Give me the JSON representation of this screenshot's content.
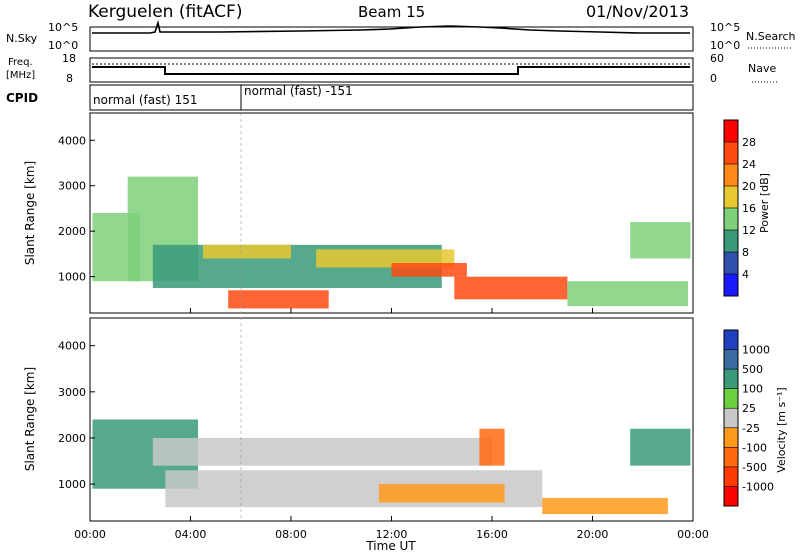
{
  "header": {
    "station": "Kerguelen (fitACF)",
    "beam": "Beam 15",
    "date": "01/Nov/2013"
  },
  "strip_panels": {
    "noise": {
      "left_label": "N.Sky",
      "right_label": "N.Search",
      "left_ticks": [
        "10^5",
        "10^0"
      ],
      "right_ticks": [
        "10^5",
        "10^0"
      ]
    },
    "freq": {
      "left_label_line1": "Freq.",
      "left_label_line2": "[MHz]",
      "right_label": "Nave",
      "left_ticks": [
        "18",
        "8"
      ],
      "right_ticks": [
        "60",
        "0"
      ]
    },
    "cpid": {
      "label": "CPID",
      "segments": [
        {
          "label": "normal (fast) 151",
          "start_hour": 0,
          "end_hour": 6
        },
        {
          "label": "normal (fast) -151",
          "start_hour": 6,
          "end_hour": 24
        }
      ]
    }
  },
  "chart_data": [
    {
      "type": "heatmap",
      "name": "power",
      "ylabel": "Slant Range [km]",
      "ylim": [
        200,
        4600
      ],
      "yticks": [
        1000,
        2000,
        3000,
        4000
      ],
      "xlim": [
        0,
        24
      ],
      "colorbar": {
        "label": "Power [dB]",
        "ticks": [
          "4",
          "8",
          "12",
          "16",
          "20",
          "24",
          "28"
        ],
        "colors": [
          "#1a1aff",
          "#3050b0",
          "#3a9a7a",
          "#7ed07a",
          "#e8c830",
          "#ff8a1a",
          "#ff4a10",
          "#ff0000"
        ]
      },
      "regions": [
        {
          "t0": 0.1,
          "t1": 2.0,
          "r0": 900,
          "r1": 2400,
          "level": 3
        },
        {
          "t0": 1.5,
          "t1": 4.3,
          "r0": 900,
          "r1": 3200,
          "level": 3
        },
        {
          "t0": 2.5,
          "t1": 14.0,
          "r0": 750,
          "r1": 1700,
          "level": 2
        },
        {
          "t0": 4.5,
          "t1": 8.0,
          "r0": 1400,
          "r1": 1700,
          "level": 4
        },
        {
          "t0": 5.5,
          "t1": 9.5,
          "r0": 300,
          "r1": 700,
          "level": 6
        },
        {
          "t0": 9.0,
          "t1": 14.5,
          "r0": 1200,
          "r1": 1600,
          "level": 4
        },
        {
          "t0": 12.0,
          "t1": 15.0,
          "r0": 1000,
          "r1": 1300,
          "level": 6
        },
        {
          "t0": 14.5,
          "t1": 19.0,
          "r0": 500,
          "r1": 1000,
          "level": 6
        },
        {
          "t0": 19.0,
          "t1": 23.8,
          "r0": 350,
          "r1": 900,
          "level": 3
        },
        {
          "t0": 21.5,
          "t1": 23.9,
          "r0": 1400,
          "r1": 2200,
          "level": 3
        }
      ]
    },
    {
      "type": "heatmap",
      "name": "velocity",
      "ylabel": "Slant Range [km]",
      "xlabel": "Time UT",
      "ylim": [
        200,
        4600
      ],
      "yticks": [
        1000,
        2000,
        3000,
        4000
      ],
      "xlim": [
        0,
        24
      ],
      "xticks": [
        "00:00",
        "04:00",
        "08:00",
        "12:00",
        "16:00",
        "20:00",
        "00:00"
      ],
      "colorbar": {
        "label": "Velocity [m s⁻¹]",
        "ticks": [
          "1000",
          "500",
          "100",
          "25",
          "-25",
          "-100",
          "-500",
          "-1000"
        ],
        "colors": [
          "#2040c0",
          "#3a6aa0",
          "#3a9a7a",
          "#6ad040",
          "#c8c8c8",
          "#ff9a1a",
          "#ff6a10",
          "#ff3a00",
          "#ff0000"
        ]
      },
      "regions": [
        {
          "t0": 0.1,
          "t1": 4.3,
          "r0": 900,
          "r1": 2400,
          "level": 6
        },
        {
          "t0": 2.5,
          "t1": 16.0,
          "r0": 1400,
          "r1": 2000,
          "level": 4
        },
        {
          "t0": 3.0,
          "t1": 18.0,
          "r0": 500,
          "r1": 1300,
          "level": 4
        },
        {
          "t0": 11.5,
          "t1": 16.5,
          "r0": 600,
          "r1": 1000,
          "level": 3
        },
        {
          "t0": 15.5,
          "t1": 16.5,
          "r0": 1400,
          "r1": 2200,
          "level": 2
        },
        {
          "t0": 18.0,
          "t1": 23.0,
          "r0": 350,
          "r1": 700,
          "level": 3
        },
        {
          "t0": 21.5,
          "t1": 23.9,
          "r0": 1400,
          "r1": 2200,
          "level": 6
        }
      ]
    }
  ]
}
